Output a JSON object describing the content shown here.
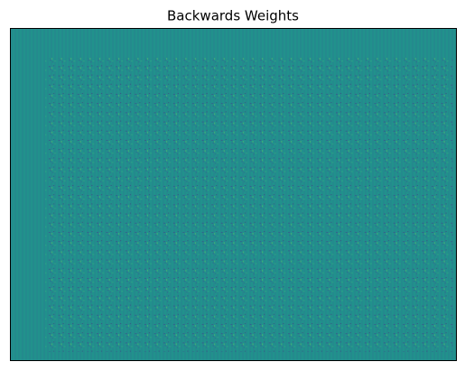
{
  "chart_data": {
    "type": "heatmap",
    "title": "Backwards Weights",
    "color": "#21918c"
  }
}
